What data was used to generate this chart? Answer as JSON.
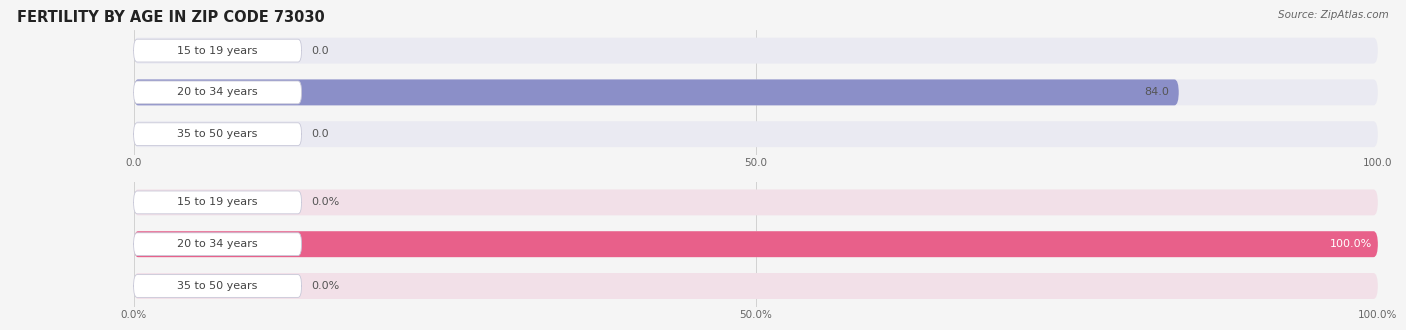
{
  "title": "FERTILITY BY AGE IN ZIP CODE 73030",
  "source": "Source: ZipAtlas.com",
  "top_chart": {
    "categories": [
      "15 to 19 years",
      "20 to 34 years",
      "35 to 50 years"
    ],
    "values": [
      0.0,
      84.0,
      0.0
    ],
    "bar_color": "#8b8fc8",
    "row_bg_color": "#eaeaf2",
    "xlim": [
      0,
      100
    ],
    "xticks": [
      0.0,
      50.0,
      100.0
    ],
    "xtick_labels": [
      "0.0",
      "50.0",
      "100.0"
    ],
    "bar_height": 0.62
  },
  "bottom_chart": {
    "categories": [
      "15 to 19 years",
      "20 to 34 years",
      "35 to 50 years"
    ],
    "values": [
      0.0,
      100.0,
      0.0
    ],
    "bar_color": "#e8608a",
    "row_bg_color": "#f2e0e8",
    "xlim": [
      0,
      100
    ],
    "xticks": [
      0.0,
      50.0,
      100.0
    ],
    "xtick_labels": [
      "0.0%",
      "50.0%",
      "100.0%"
    ],
    "bar_height": 0.62
  },
  "fig_bg": "#f5f5f5",
  "label_pill_color": "#ffffff",
  "label_pill_edge": "#c8c8d8",
  "label_text_color": "#444444",
  "value_text_color_dark": "#555555",
  "value_text_color_light": "#ffffff",
  "title_fontsize": 10.5,
  "label_fontsize": 8,
  "tick_fontsize": 7.5,
  "value_fontsize": 8
}
